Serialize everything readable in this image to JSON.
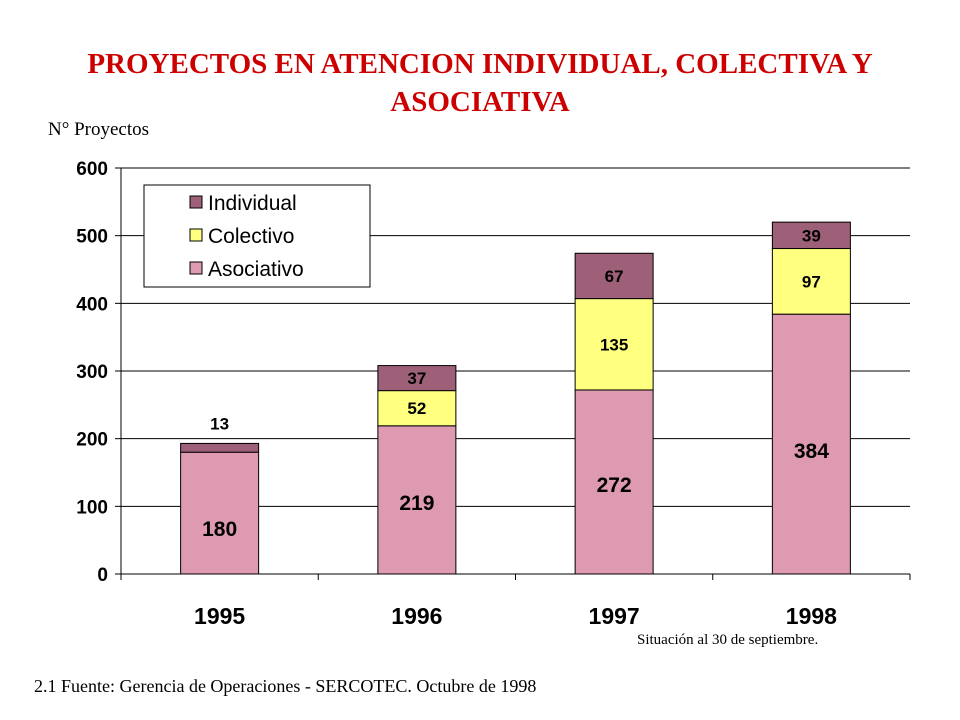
{
  "title": "PROYECTOS EN ATENCION INDIVIDUAL, COLECTIVA Y ASOCIATIVA",
  "note": "Situación al 30 de septiembre.",
  "source": "2.1 Fuente: Gerencia de Operaciones - SERCOTEC. Octubre de 1998",
  "colors": {
    "Asociativo": "#dd9ab0",
    "Colectivo": "#ffff80",
    "Individual": "#9e5f78",
    "grid": "#000000"
  },
  "chart_data": {
    "type": "bar",
    "stacked": true,
    "categories": [
      "1995",
      "1996",
      "1997",
      "1998"
    ],
    "ylabel": "N° Proyectos",
    "ylim": [
      0,
      600
    ],
    "yticks": [
      0,
      100,
      200,
      300,
      400,
      500,
      600
    ],
    "grid": true,
    "legend_position": "top-left",
    "series": [
      {
        "name": "Asociativo",
        "values": [
          180,
          219,
          272,
          384
        ]
      },
      {
        "name": "Colectivo",
        "values": [
          null,
          52,
          135,
          97
        ]
      },
      {
        "name": "Individual",
        "values": [
          13,
          37,
          67,
          39
        ]
      }
    ],
    "legend_order": [
      "Individual",
      "Colectivo",
      "Asociativo"
    ]
  }
}
